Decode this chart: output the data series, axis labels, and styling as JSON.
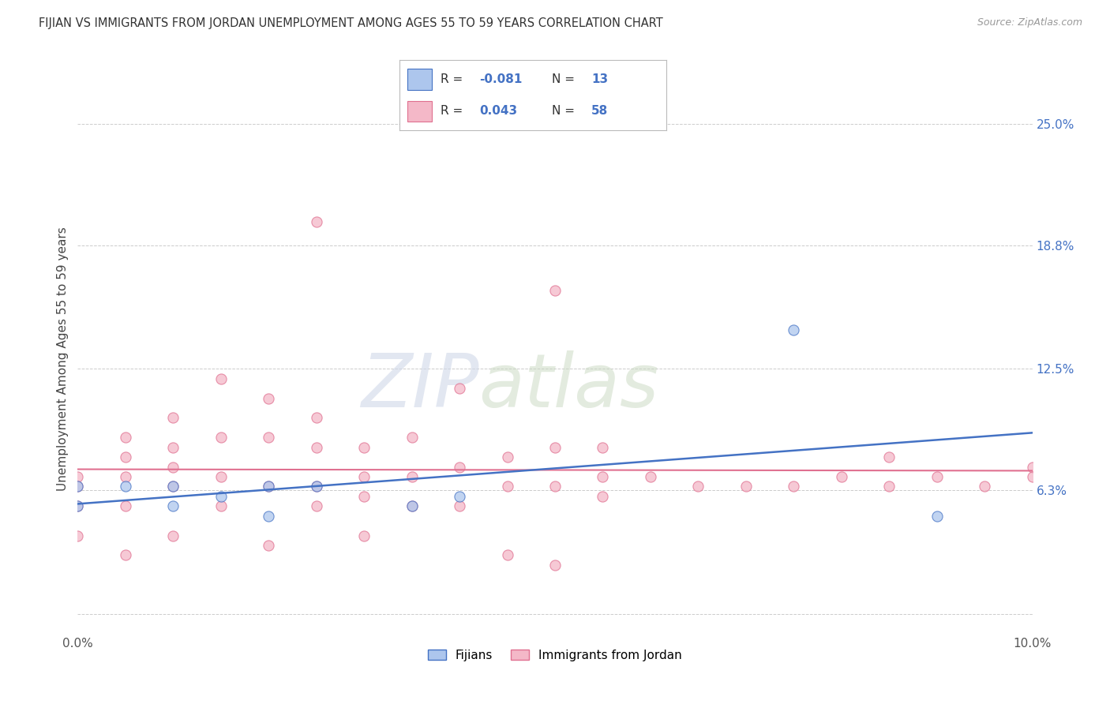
{
  "title": "FIJIAN VS IMMIGRANTS FROM JORDAN UNEMPLOYMENT AMONG AGES 55 TO 59 YEARS CORRELATION CHART",
  "source": "Source: ZipAtlas.com",
  "ylabel": "Unemployment Among Ages 55 to 59 years",
  "xlim": [
    0.0,
    0.1
  ],
  "ylim": [
    -0.01,
    0.27
  ],
  "ytick_right_vals": [
    0.0,
    0.063,
    0.125,
    0.188,
    0.25
  ],
  "ytick_right_labels": [
    "",
    "6.3%",
    "12.5%",
    "18.8%",
    "25.0%"
  ],
  "fijian_fill_color": "#adc6ed",
  "fijian_edge_color": "#4472c4",
  "jordan_fill_color": "#f4b8c8",
  "jordan_edge_color": "#e07090",
  "fijian_line_color": "#4472c4",
  "jordan_line_color": "#e07090",
  "legend_r_fijian": "-0.081",
  "legend_n_fijian": "13",
  "legend_r_jordan": "0.043",
  "legend_n_jordan": "58",
  "watermark_zip": "ZIP",
  "watermark_atlas": "atlas",
  "background_color": "#ffffff",
  "fijian_x": [
    0.0,
    0.0,
    0.005,
    0.01,
    0.01,
    0.015,
    0.02,
    0.02,
    0.025,
    0.035,
    0.04,
    0.075,
    0.09
  ],
  "fijian_y": [
    0.065,
    0.055,
    0.065,
    0.065,
    0.055,
    0.06,
    0.065,
    0.05,
    0.065,
    0.055,
    0.06,
    0.145,
    0.05
  ],
  "jordan_x": [
    0.0,
    0.0,
    0.0,
    0.0,
    0.005,
    0.005,
    0.005,
    0.005,
    0.005,
    0.01,
    0.01,
    0.01,
    0.01,
    0.01,
    0.015,
    0.015,
    0.015,
    0.015,
    0.02,
    0.02,
    0.02,
    0.02,
    0.025,
    0.025,
    0.025,
    0.025,
    0.025,
    0.03,
    0.03,
    0.03,
    0.03,
    0.035,
    0.035,
    0.035,
    0.04,
    0.04,
    0.04,
    0.045,
    0.045,
    0.045,
    0.05,
    0.05,
    0.05,
    0.05,
    0.055,
    0.055,
    0.055,
    0.06,
    0.065,
    0.07,
    0.075,
    0.08,
    0.085,
    0.085,
    0.09,
    0.095,
    0.1,
    0.1
  ],
  "jordan_y": [
    0.07,
    0.065,
    0.055,
    0.04,
    0.09,
    0.08,
    0.07,
    0.055,
    0.03,
    0.1,
    0.085,
    0.075,
    0.065,
    0.04,
    0.12,
    0.09,
    0.07,
    0.055,
    0.11,
    0.09,
    0.065,
    0.035,
    0.2,
    0.1,
    0.085,
    0.065,
    0.055,
    0.085,
    0.07,
    0.06,
    0.04,
    0.09,
    0.07,
    0.055,
    0.115,
    0.075,
    0.055,
    0.08,
    0.065,
    0.03,
    0.165,
    0.085,
    0.065,
    0.025,
    0.085,
    0.07,
    0.06,
    0.07,
    0.065,
    0.065,
    0.065,
    0.07,
    0.08,
    0.065,
    0.07,
    0.065,
    0.075,
    0.07
  ]
}
